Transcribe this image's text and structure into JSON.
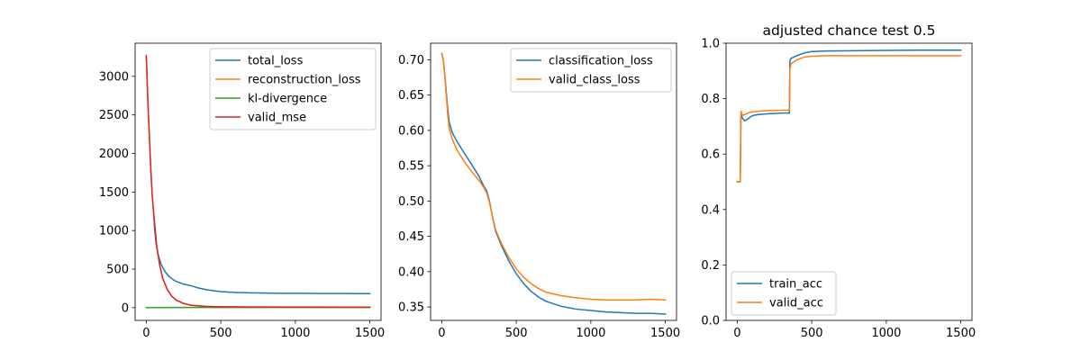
{
  "chart_data": [
    {
      "type": "line",
      "title": "",
      "xlim": [
        -75,
        1575
      ],
      "ylim": [
        -165,
        3430
      ],
      "xticks": [
        0,
        500,
        1000,
        1500
      ],
      "yticks": [
        0,
        500,
        1000,
        1500,
        2000,
        2500,
        3000
      ],
      "legend_position": "top-right",
      "series": [
        {
          "name": "total_loss",
          "color": "#1f77b4",
          "points": [
            [
              50,
              1210
            ],
            [
              55,
              1030
            ],
            [
              65,
              840
            ],
            [
              80,
              680
            ],
            [
              100,
              560
            ],
            [
              125,
              470
            ],
            [
              150,
              410
            ],
            [
              175,
              370
            ],
            [
              200,
              340
            ],
            [
              250,
              305
            ],
            [
              300,
              285
            ],
            [
              350,
              255
            ],
            [
              400,
              235
            ],
            [
              450,
              220
            ],
            [
              500,
              208
            ],
            [
              600,
              197
            ],
            [
              700,
              192
            ],
            [
              800,
              189
            ],
            [
              900,
              187
            ],
            [
              1000,
              186
            ],
            [
              1100,
              185
            ],
            [
              1200,
              184
            ],
            [
              1300,
              184
            ],
            [
              1400,
              183
            ],
            [
              1500,
              183
            ]
          ]
        },
        {
          "name": "reconstruction_loss",
          "color": "#ff7f0e",
          "points": [
            [
              0,
              3250
            ],
            [
              10,
              2700
            ],
            [
              20,
              2250
            ],
            [
              30,
              1800
            ],
            [
              40,
              1450
            ],
            [
              55,
              1100
            ],
            [
              70,
              800
            ],
            [
              90,
              550
            ],
            [
              110,
              380
            ],
            [
              140,
              240
            ],
            [
              170,
              150
            ],
            [
              200,
              100
            ],
            [
              250,
              55
            ],
            [
              300,
              30
            ],
            [
              400,
              15
            ],
            [
              500,
              10
            ],
            [
              700,
              8
            ],
            [
              1000,
              7
            ],
            [
              1500,
              6
            ]
          ]
        },
        {
          "name": "kl-divergence",
          "color": "#2ca02c",
          "points": [
            [
              0,
              2
            ],
            [
              300,
              3
            ],
            [
              600,
              3
            ],
            [
              1000,
              3
            ],
            [
              1500,
              3
            ]
          ]
        },
        {
          "name": "valid_mse",
          "color": "#d62728",
          "points": [
            [
              0,
              3270
            ],
            [
              10,
              2700
            ],
            [
              20,
              2250
            ],
            [
              30,
              1800
            ],
            [
              40,
              1450
            ],
            [
              55,
              1100
            ],
            [
              70,
              800
            ],
            [
              90,
              550
            ],
            [
              110,
              380
            ],
            [
              140,
              240
            ],
            [
              170,
              150
            ],
            [
              200,
              100
            ],
            [
              250,
              55
            ],
            [
              300,
              32
            ],
            [
              400,
              18
            ],
            [
              500,
              12
            ],
            [
              700,
              9
            ],
            [
              1000,
              8
            ],
            [
              1500,
              7
            ]
          ]
        }
      ]
    },
    {
      "type": "line",
      "title": "",
      "xlim": [
        -75,
        1575
      ],
      "ylim": [
        0.331,
        0.7235
      ],
      "xticks": [
        0,
        500,
        1000,
        1500
      ],
      "yticks": [
        0.35,
        0.4,
        0.45,
        0.5,
        0.55,
        0.6,
        0.65,
        0.7
      ],
      "legend_position": "top-right",
      "series": [
        {
          "name": "classification_loss",
          "color": "#1f77b4",
          "points": [
            [
              0,
              0.709
            ],
            [
              10,
              0.7
            ],
            [
              20,
              0.68
            ],
            [
              30,
              0.655
            ],
            [
              40,
              0.63
            ],
            [
              50,
              0.612
            ],
            [
              70,
              0.597
            ],
            [
              100,
              0.585
            ],
            [
              150,
              0.568
            ],
            [
              200,
              0.552
            ],
            [
              250,
              0.535
            ],
            [
              280,
              0.522
            ],
            [
              300,
              0.515
            ],
            [
              320,
              0.5
            ],
            [
              340,
              0.478
            ],
            [
              360,
              0.458
            ],
            [
              400,
              0.437
            ],
            [
              450,
              0.415
            ],
            [
              500,
              0.397
            ],
            [
              550,
              0.383
            ],
            [
              600,
              0.372
            ],
            [
              650,
              0.364
            ],
            [
              700,
              0.358
            ],
            [
              800,
              0.351
            ],
            [
              900,
              0.347
            ],
            [
              1000,
              0.345
            ],
            [
              1100,
              0.343
            ],
            [
              1200,
              0.342
            ],
            [
              1300,
              0.341
            ],
            [
              1400,
              0.341
            ],
            [
              1500,
              0.34
            ]
          ]
        },
        {
          "name": "valid_class_loss",
          "color": "#ff7f0e",
          "points": [
            [
              0,
              0.709
            ],
            [
              10,
              0.7
            ],
            [
              20,
              0.678
            ],
            [
              30,
              0.65
            ],
            [
              40,
              0.622
            ],
            [
              50,
              0.602
            ],
            [
              70,
              0.588
            ],
            [
              100,
              0.573
            ],
            [
              150,
              0.556
            ],
            [
              200,
              0.542
            ],
            [
              250,
              0.529
            ],
            [
              280,
              0.52
            ],
            [
              300,
              0.512
            ],
            [
              320,
              0.498
            ],
            [
              340,
              0.478
            ],
            [
              360,
              0.46
            ],
            [
              400,
              0.44
            ],
            [
              450,
              0.42
            ],
            [
              500,
              0.404
            ],
            [
              550,
              0.392
            ],
            [
              600,
              0.383
            ],
            [
              650,
              0.376
            ],
            [
              700,
              0.371
            ],
            [
              800,
              0.366
            ],
            [
              900,
              0.363
            ],
            [
              1000,
              0.361
            ],
            [
              1100,
              0.36
            ],
            [
              1200,
              0.36
            ],
            [
              1300,
              0.36
            ],
            [
              1400,
              0.361
            ],
            [
              1500,
              0.36
            ]
          ]
        }
      ]
    },
    {
      "type": "line",
      "title": "adjusted chance test 0.5",
      "xlim": [
        -75,
        1575
      ],
      "ylim": [
        0,
        1.0
      ],
      "xticks": [
        0,
        500,
        1000,
        1500
      ],
      "yticks": [
        0.0,
        0.2,
        0.4,
        0.6,
        0.8,
        1.0
      ],
      "legend_position": "lower-left",
      "series": [
        {
          "name": "train_acc",
          "color": "#1f77b4",
          "points": [
            [
              0,
              0.5
            ],
            [
              20,
              0.5
            ],
            [
              25,
              0.745
            ],
            [
              35,
              0.73
            ],
            [
              50,
              0.72
            ],
            [
              70,
              0.726
            ],
            [
              90,
              0.735
            ],
            [
              110,
              0.74
            ],
            [
              150,
              0.743
            ],
            [
              200,
              0.745
            ],
            [
              300,
              0.748
            ],
            [
              350,
              0.748
            ],
            [
              353,
              0.935
            ],
            [
              360,
              0.945
            ],
            [
              400,
              0.955
            ],
            [
              450,
              0.965
            ],
            [
              500,
              0.97
            ],
            [
              600,
              0.972
            ],
            [
              800,
              0.973
            ],
            [
              1000,
              0.974
            ],
            [
              1200,
              0.975
            ],
            [
              1500,
              0.975
            ]
          ]
        },
        {
          "name": "valid_acc",
          "color": "#ff7f0e",
          "points": [
            [
              0,
              0.5
            ],
            [
              20,
              0.5
            ],
            [
              25,
              0.755
            ],
            [
              30,
              0.745
            ],
            [
              40,
              0.74
            ],
            [
              60,
              0.745
            ],
            [
              80,
              0.75
            ],
            [
              100,
              0.752
            ],
            [
              150,
              0.755
            ],
            [
              200,
              0.757
            ],
            [
              300,
              0.758
            ],
            [
              350,
              0.758
            ],
            [
              353,
              0.905
            ],
            [
              360,
              0.925
            ],
            [
              400,
              0.94
            ],
            [
              450,
              0.95
            ],
            [
              500,
              0.953
            ],
            [
              600,
              0.955
            ],
            [
              800,
              0.955
            ],
            [
              1000,
              0.955
            ],
            [
              1200,
              0.955
            ],
            [
              1500,
              0.955
            ]
          ]
        }
      ]
    }
  ]
}
